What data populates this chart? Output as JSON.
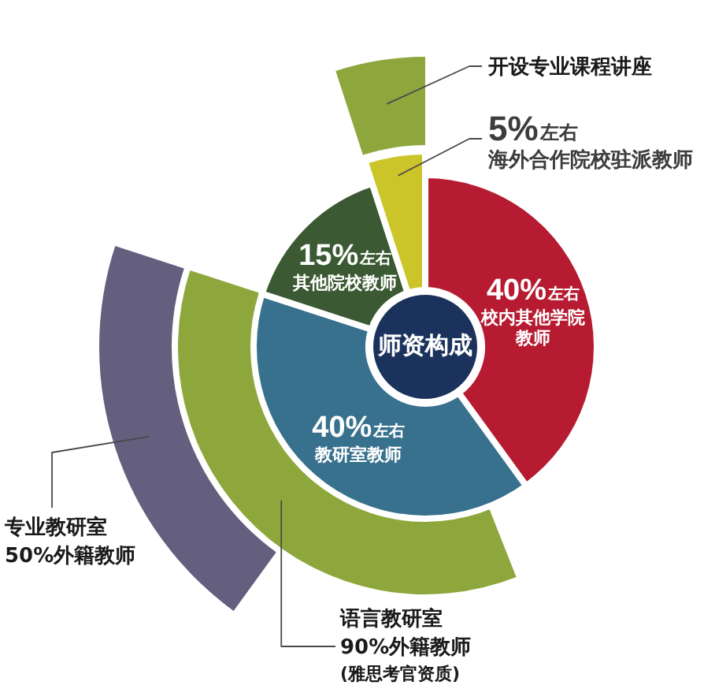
{
  "chart_data": {
    "type": "donut",
    "title": "师资构成",
    "categories": [
      "校内其他学院教师",
      "教研室教师",
      "其他院校教师",
      "海外合作院校驻派教师"
    ],
    "values": [
      40,
      40,
      15,
      5
    ],
    "colors": [
      "#b71b31",
      "#38718d",
      "#3b5a33",
      "#ccc52a"
    ],
    "value_labels": [
      "40%左右",
      "40%左右",
      "15%左右",
      "5%左右"
    ],
    "series": [
      {
        "name": "专业教研室",
        "colors": [
          null,
          "#645e7f",
          null,
          null
        ],
        "values": [
          null,
          50,
          null,
          null
        ],
        "value_labels": [
          null,
          "50%外籍教师",
          null,
          null
        ]
      },
      {
        "name": "开设专业课程讲座",
        "colors": [
          null,
          null,
          null,
          "#8ea73c"
        ],
        "values": [
          null,
          null,
          null,
          100
        ]
      },
      {
        "name": "语言教研室",
        "colors": [
          null,
          "#8ea73c",
          null,
          null
        ],
        "values": [
          null,
          90,
          null,
          null
        ],
        "value_labels": [
          null,
          "90%外籍教师",
          null,
          null
        ]
      }
    ],
    "annotations": [
      "(雅思考官资质)"
    ]
  }
}
